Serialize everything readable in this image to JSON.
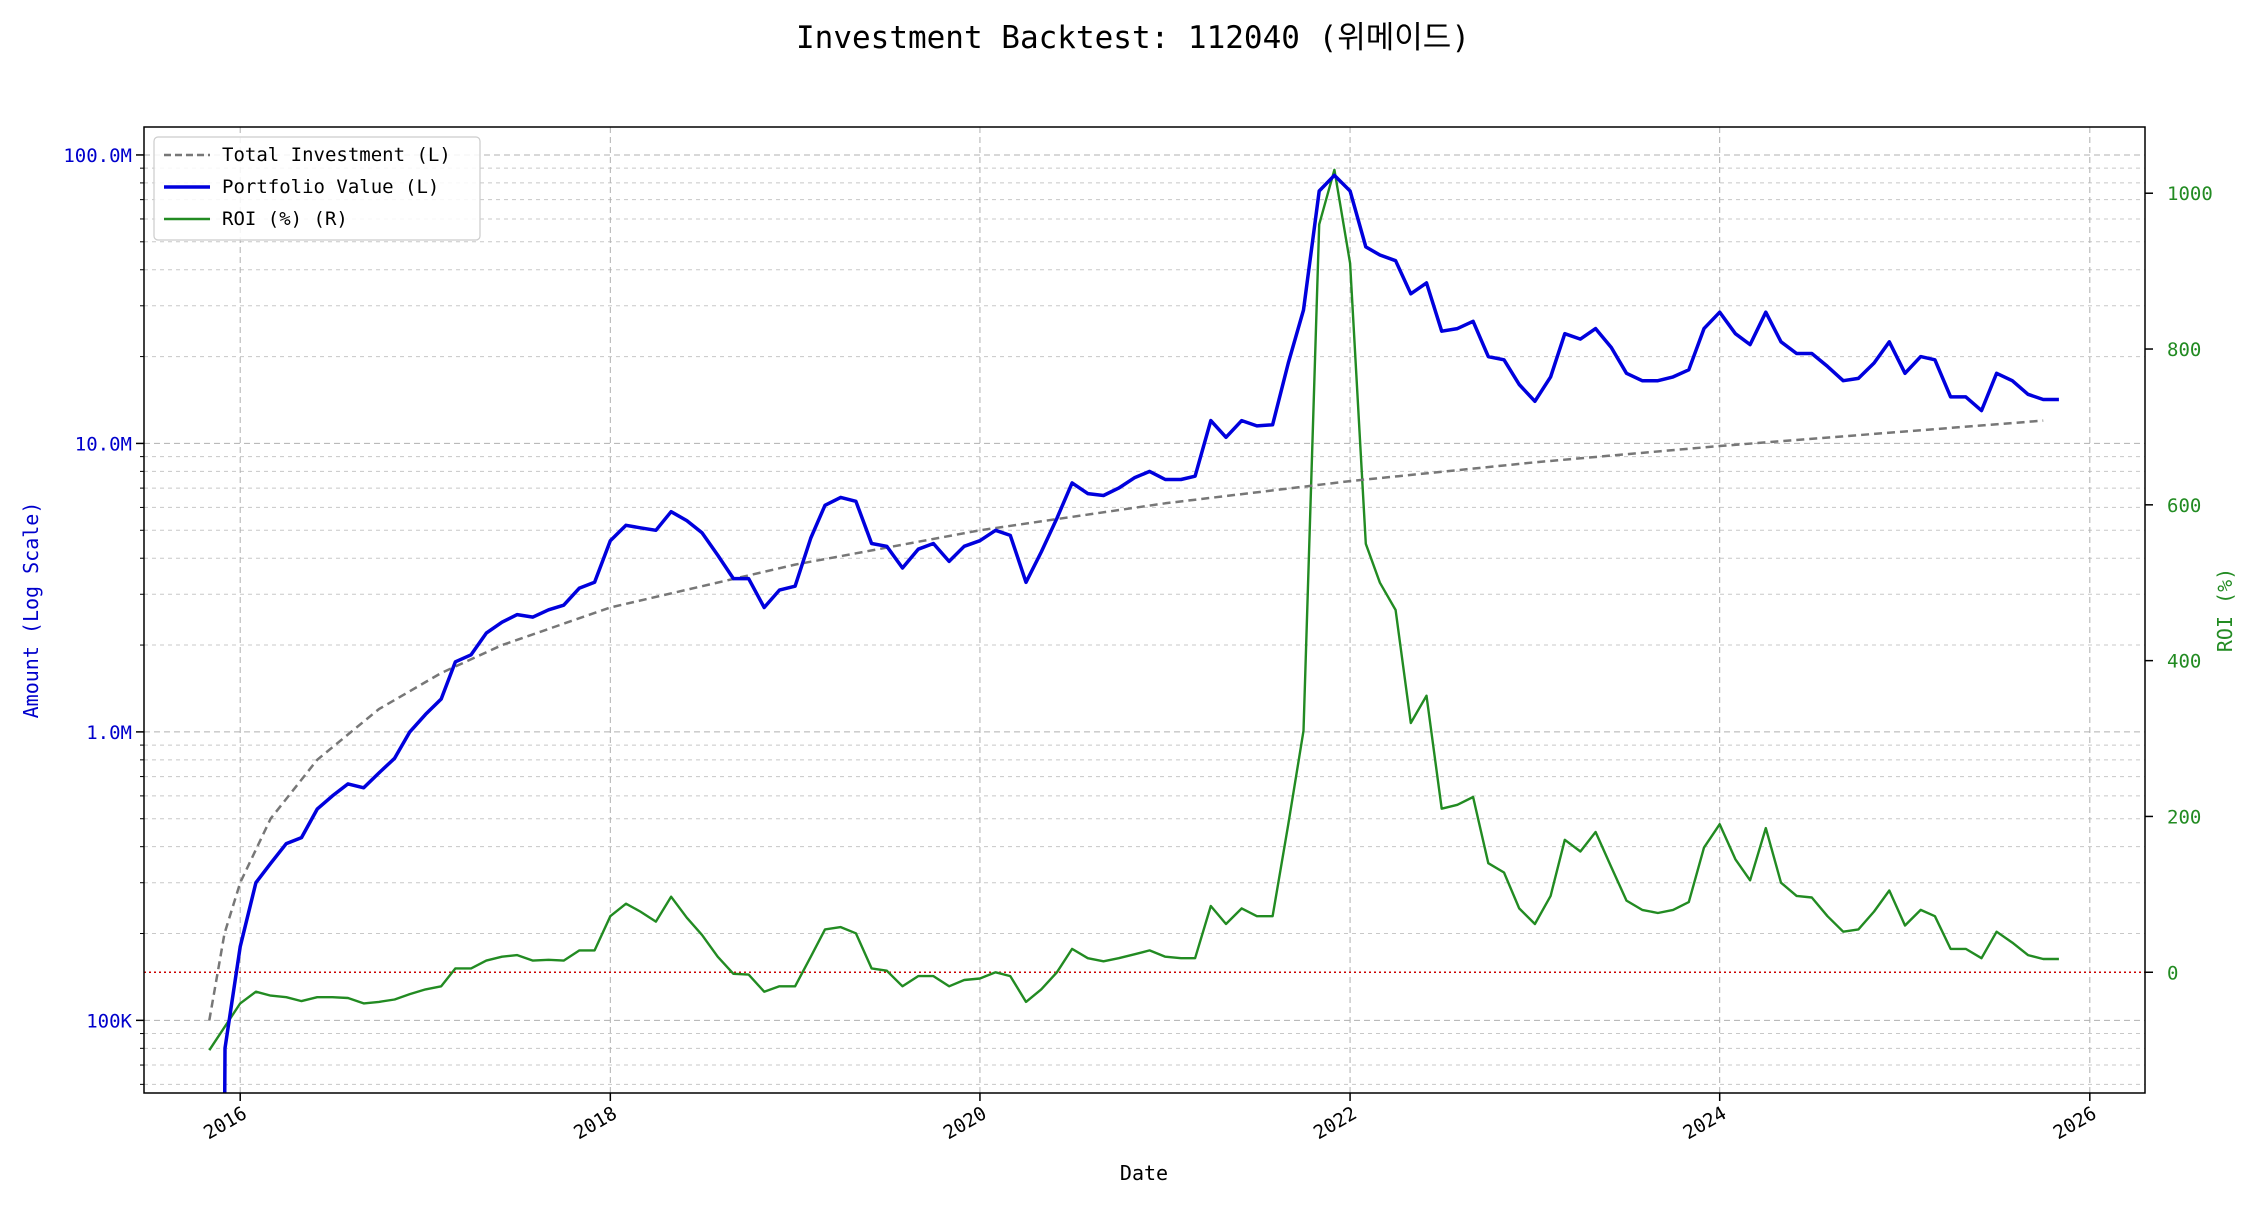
{
  "chart_data": {
    "type": "line",
    "title": "Investment Backtest: 112040 (위메이드)",
    "xlabel": "Date",
    "ylabel_left": "Amount (Log Scale)",
    "ylabel_right": "ROI (%)",
    "y_left_scale": "log",
    "y_left_ticks": [
      {
        "value": 100000,
        "label": "100K"
      },
      {
        "value": 1000000,
        "label": "1.0M"
      },
      {
        "value": 10000000,
        "label": "10.0M"
      },
      {
        "value": 100000000,
        "label": "100.0M"
      }
    ],
    "y_left_range": [
      56000,
      125000000
    ],
    "y_right_ticks": [
      0,
      200,
      400,
      600,
      800,
      1000
    ],
    "y_right_range": [
      -155,
      1085
    ],
    "x_ticks": [
      "2016",
      "2018",
      "2020",
      "2022",
      "2024",
      "2026"
    ],
    "x_range": [
      "2015-06-25",
      "2026-04-20"
    ],
    "grid": true,
    "legend_position": "upper left",
    "reference_line": {
      "axis": "right",
      "value": 0,
      "color": "#cc0000",
      "style": "dotted"
    },
    "series": [
      {
        "name": "Total Investment (L)",
        "axis": "left",
        "color": "#777777",
        "style": "dashed",
        "data": [
          [
            "2015-11-01",
            100000
          ],
          [
            "2015-12-01",
            200000
          ],
          [
            "2016-01-01",
            300000
          ],
          [
            "2016-03-01",
            500000
          ],
          [
            "2016-06-01",
            800000
          ],
          [
            "2016-10-01",
            1200000
          ],
          [
            "2017-02-01",
            1600000
          ],
          [
            "2017-06-01",
            2000000
          ],
          [
            "2018-01-01",
            2700000
          ],
          [
            "2019-01-01",
            3800000
          ],
          [
            "2020-01-01",
            5000000
          ],
          [
            "2021-01-01",
            6200000
          ],
          [
            "2022-01-01",
            7400000
          ],
          [
            "2023-01-01",
            8600000
          ],
          [
            "2024-01-01",
            9800000
          ],
          [
            "2025-01-01",
            11000000
          ],
          [
            "2025-10-01",
            12000000
          ]
        ]
      },
      {
        "name": "Portfolio Value (L)",
        "axis": "left",
        "color": "#0000dd",
        "style": "solid",
        "data": [
          [
            "2015-12-01",
            40000
          ],
          [
            "2015-12-02",
            80000
          ],
          [
            "2016-01-01",
            180000
          ],
          [
            "2016-02-01",
            300000
          ],
          [
            "2016-03-01",
            350000
          ],
          [
            "2016-04-01",
            410000
          ],
          [
            "2016-05-01",
            430000
          ],
          [
            "2016-06-01",
            540000
          ],
          [
            "2016-07-01",
            600000
          ],
          [
            "2016-08-01",
            660000
          ],
          [
            "2016-09-01",
            640000
          ],
          [
            "2016-10-01",
            720000
          ],
          [
            "2016-11-01",
            810000
          ],
          [
            "2016-12-01",
            1000000
          ],
          [
            "2017-01-01",
            1150000
          ],
          [
            "2017-02-01",
            1300000
          ],
          [
            "2017-03-01",
            1750000
          ],
          [
            "2017-04-01",
            1850000
          ],
          [
            "2017-05-01",
            2200000
          ],
          [
            "2017-06-01",
            2400000
          ],
          [
            "2017-07-01",
            2550000
          ],
          [
            "2017-08-01",
            2500000
          ],
          [
            "2017-09-01",
            2650000
          ],
          [
            "2017-10-01",
            2750000
          ],
          [
            "2017-11-01",
            3150000
          ],
          [
            "2017-12-01",
            3300000
          ],
          [
            "2018-01-01",
            4600000
          ],
          [
            "2018-02-01",
            5200000
          ],
          [
            "2018-03-01",
            5100000
          ],
          [
            "2018-04-01",
            5000000
          ],
          [
            "2018-05-01",
            5800000
          ],
          [
            "2018-06-01",
            5400000
          ],
          [
            "2018-07-01",
            4900000
          ],
          [
            "2018-08-01",
            4100000
          ],
          [
            "2018-09-01",
            3400000
          ],
          [
            "2018-10-01",
            3400000
          ],
          [
            "2018-11-01",
            2700000
          ],
          [
            "2018-12-01",
            3100000
          ],
          [
            "2019-01-01",
            3200000
          ],
          [
            "2019-02-01",
            4700000
          ],
          [
            "2019-03-01",
            6100000
          ],
          [
            "2019-04-01",
            6500000
          ],
          [
            "2019-05-01",
            6300000
          ],
          [
            "2019-06-01",
            4500000
          ],
          [
            "2019-07-01",
            4400000
          ],
          [
            "2019-08-01",
            3700000
          ],
          [
            "2019-09-01",
            4300000
          ],
          [
            "2019-10-01",
            4500000
          ],
          [
            "2019-11-01",
            3900000
          ],
          [
            "2019-12-01",
            4400000
          ],
          [
            "2020-01-01",
            4600000
          ],
          [
            "2020-02-01",
            5000000
          ],
          [
            "2020-03-01",
            4800000
          ],
          [
            "2020-04-01",
            3300000
          ],
          [
            "2020-05-01",
            4200000
          ],
          [
            "2020-06-01",
            5500000
          ],
          [
            "2020-07-01",
            7300000
          ],
          [
            "2020-08-01",
            6700000
          ],
          [
            "2020-09-01",
            6600000
          ],
          [
            "2020-10-01",
            7000000
          ],
          [
            "2020-11-01",
            7600000
          ],
          [
            "2020-12-01",
            8000000
          ],
          [
            "2021-01-01",
            7500000
          ],
          [
            "2021-02-01",
            7500000
          ],
          [
            "2021-03-01",
            7700000
          ],
          [
            "2021-04-01",
            12000000
          ],
          [
            "2021-05-01",
            10500000
          ],
          [
            "2021-06-01",
            12000000
          ],
          [
            "2021-07-01",
            11500000
          ],
          [
            "2021-08-01",
            11600000
          ],
          [
            "2021-09-01",
            19000000
          ],
          [
            "2021-10-01",
            29000000
          ],
          [
            "2021-11-01",
            75000000
          ],
          [
            "2021-12-01",
            85000000
          ],
          [
            "2022-01-01",
            75000000
          ],
          [
            "2022-02-01",
            48000000
          ],
          [
            "2022-03-01",
            45000000
          ],
          [
            "2022-04-01",
            43000000
          ],
          [
            "2022-05-01",
            33000000
          ],
          [
            "2022-06-01",
            36000000
          ],
          [
            "2022-07-01",
            24500000
          ],
          [
            "2022-08-01",
            25000000
          ],
          [
            "2022-09-01",
            26500000
          ],
          [
            "2022-10-01",
            20000000
          ],
          [
            "2022-11-01",
            19500000
          ],
          [
            "2022-12-01",
            16000000
          ],
          [
            "2023-01-01",
            14000000
          ],
          [
            "2023-02-01",
            17000000
          ],
          [
            "2023-03-01",
            24000000
          ],
          [
            "2023-04-01",
            23000000
          ],
          [
            "2023-05-01",
            25000000
          ],
          [
            "2023-06-01",
            21500000
          ],
          [
            "2023-07-01",
            17500000
          ],
          [
            "2023-08-01",
            16500000
          ],
          [
            "2023-09-01",
            16500000
          ],
          [
            "2023-10-01",
            17000000
          ],
          [
            "2023-11-01",
            18000000
          ],
          [
            "2023-12-01",
            25000000
          ],
          [
            "2024-01-01",
            28500000
          ],
          [
            "2024-02-01",
            24000000
          ],
          [
            "2024-03-01",
            22000000
          ],
          [
            "2024-04-01",
            28500000
          ],
          [
            "2024-05-01",
            22500000
          ],
          [
            "2024-06-01",
            20500000
          ],
          [
            "2024-07-01",
            20500000
          ],
          [
            "2024-08-01",
            18500000
          ],
          [
            "2024-09-01",
            16500000
          ],
          [
            "2024-10-01",
            16800000
          ],
          [
            "2024-11-01",
            19000000
          ],
          [
            "2024-12-01",
            22500000
          ],
          [
            "2025-01-01",
            17500000
          ],
          [
            "2025-02-01",
            20000000
          ],
          [
            "2025-03-01",
            19500000
          ],
          [
            "2025-04-01",
            14500000
          ],
          [
            "2025-05-01",
            14500000
          ],
          [
            "2025-06-01",
            13000000
          ],
          [
            "2025-07-01",
            17500000
          ],
          [
            "2025-08-01",
            16500000
          ],
          [
            "2025-09-01",
            14800000
          ],
          [
            "2025-10-01",
            14200000
          ],
          [
            "2025-11-01",
            14200000
          ]
        ]
      },
      {
        "name": "ROI (%) (R)",
        "axis": "right",
        "color": "#228b22",
        "style": "solid",
        "data": [
          [
            "2015-11-01",
            -100
          ],
          [
            "2016-01-01",
            -40
          ],
          [
            "2016-02-01",
            -25
          ],
          [
            "2016-03-01",
            -30
          ],
          [
            "2016-04-01",
            -32
          ],
          [
            "2016-05-01",
            -37
          ],
          [
            "2016-06-01",
            -32
          ],
          [
            "2016-07-01",
            -32
          ],
          [
            "2016-08-01",
            -33
          ],
          [
            "2016-09-01",
            -40
          ],
          [
            "2016-10-01",
            -38
          ],
          [
            "2016-11-01",
            -35
          ],
          [
            "2016-12-01",
            -28
          ],
          [
            "2017-01-01",
            -22
          ],
          [
            "2017-02-01",
            -18
          ],
          [
            "2017-03-01",
            5
          ],
          [
            "2017-04-01",
            5
          ],
          [
            "2017-05-01",
            15
          ],
          [
            "2017-06-01",
            20
          ],
          [
            "2017-07-01",
            22
          ],
          [
            "2017-08-01",
            15
          ],
          [
            "2017-09-01",
            16
          ],
          [
            "2017-10-01",
            15
          ],
          [
            "2017-11-01",
            28
          ],
          [
            "2017-12-01",
            28
          ],
          [
            "2018-01-01",
            72
          ],
          [
            "2018-02-01",
            88
          ],
          [
            "2018-03-01",
            78
          ],
          [
            "2018-04-01",
            65
          ],
          [
            "2018-05-01",
            97
          ],
          [
            "2018-06-01",
            70
          ],
          [
            "2018-07-01",
            48
          ],
          [
            "2018-08-01",
            20
          ],
          [
            "2018-09-01",
            -2
          ],
          [
            "2018-10-01",
            -3
          ],
          [
            "2018-11-01",
            -25
          ],
          [
            "2018-12-01",
            -18
          ],
          [
            "2019-01-01",
            -18
          ],
          [
            "2019-02-01",
            20
          ],
          [
            "2019-03-01",
            55
          ],
          [
            "2019-04-01",
            58
          ],
          [
            "2019-05-01",
            50
          ],
          [
            "2019-06-01",
            5
          ],
          [
            "2019-07-01",
            2
          ],
          [
            "2019-08-01",
            -18
          ],
          [
            "2019-09-01",
            -5
          ],
          [
            "2019-10-01",
            -5
          ],
          [
            "2019-11-01",
            -18
          ],
          [
            "2019-12-01",
            -10
          ],
          [
            "2020-01-01",
            -8
          ],
          [
            "2020-02-01",
            0
          ],
          [
            "2020-03-01",
            -5
          ],
          [
            "2020-04-01",
            -38
          ],
          [
            "2020-05-01",
            -22
          ],
          [
            "2020-06-01",
            0
          ],
          [
            "2020-07-01",
            30
          ],
          [
            "2020-08-01",
            18
          ],
          [
            "2020-09-01",
            14
          ],
          [
            "2020-10-01",
            18
          ],
          [
            "2020-11-01",
            23
          ],
          [
            "2020-12-01",
            28
          ],
          [
            "2021-01-01",
            20
          ],
          [
            "2021-02-01",
            18
          ],
          [
            "2021-03-01",
            18
          ],
          [
            "2021-04-01",
            85
          ],
          [
            "2021-05-01",
            62
          ],
          [
            "2021-06-01",
            82
          ],
          [
            "2021-07-01",
            72
          ],
          [
            "2021-08-01",
            72
          ],
          [
            "2021-09-01",
            190
          ],
          [
            "2021-10-01",
            310
          ],
          [
            "2021-11-01",
            960
          ],
          [
            "2021-12-01",
            1030
          ],
          [
            "2022-01-01",
            910
          ],
          [
            "2022-02-01",
            550
          ],
          [
            "2022-03-01",
            500
          ],
          [
            "2022-04-01",
            465
          ],
          [
            "2022-05-01",
            320
          ],
          [
            "2022-06-01",
            355
          ],
          [
            "2022-07-01",
            210
          ],
          [
            "2022-08-01",
            215
          ],
          [
            "2022-09-01",
            225
          ],
          [
            "2022-10-01",
            140
          ],
          [
            "2022-11-01",
            128
          ],
          [
            "2022-12-01",
            82
          ],
          [
            "2023-01-01",
            62
          ],
          [
            "2023-02-01",
            98
          ],
          [
            "2023-03-01",
            170
          ],
          [
            "2023-04-01",
            155
          ],
          [
            "2023-05-01",
            180
          ],
          [
            "2023-06-01",
            135
          ],
          [
            "2023-07-01",
            92
          ],
          [
            "2023-08-01",
            80
          ],
          [
            "2023-09-01",
            76
          ],
          [
            "2023-10-01",
            80
          ],
          [
            "2023-11-01",
            90
          ],
          [
            "2023-12-01",
            160
          ],
          [
            "2024-01-01",
            190
          ],
          [
            "2024-02-01",
            145
          ],
          [
            "2024-03-01",
            118
          ],
          [
            "2024-04-01",
            185
          ],
          [
            "2024-05-01",
            115
          ],
          [
            "2024-06-01",
            98
          ],
          [
            "2024-07-01",
            96
          ],
          [
            "2024-08-01",
            72
          ],
          [
            "2024-09-01",
            52
          ],
          [
            "2024-10-01",
            55
          ],
          [
            "2024-11-01",
            78
          ],
          [
            "2024-12-01",
            105
          ],
          [
            "2025-01-01",
            60
          ],
          [
            "2025-02-01",
            80
          ],
          [
            "2025-03-01",
            72
          ],
          [
            "2025-04-01",
            30
          ],
          [
            "2025-05-01",
            30
          ],
          [
            "2025-06-01",
            18
          ],
          [
            "2025-07-01",
            52
          ],
          [
            "2025-08-01",
            38
          ],
          [
            "2025-09-01",
            22
          ],
          [
            "2025-10-01",
            17
          ],
          [
            "2025-11-01",
            17
          ]
        ]
      }
    ]
  }
}
